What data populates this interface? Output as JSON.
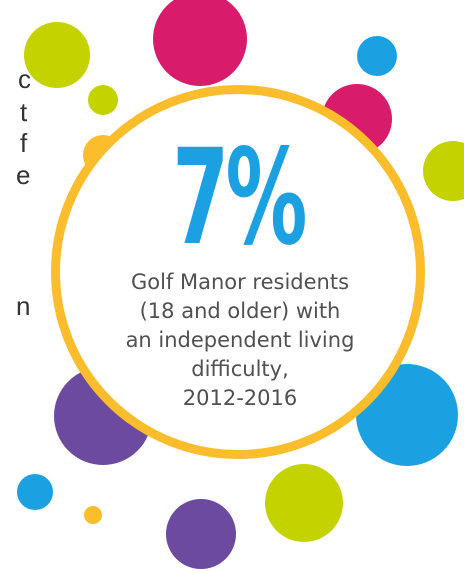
{
  "side_text_fragments": [
    "c",
    "t",
    "f",
    "e",
    "n"
  ],
  "statistic": {
    "value": "7%",
    "caption_lines": [
      "Golf Manor residents",
      "(18 and older) with",
      "an independent living",
      "difficulty,",
      "2012-2016"
    ]
  },
  "colors": {
    "accent_blue": "#1ba1e2",
    "ring_yellow": "#fbbd2c",
    "magenta": "#d81b6b",
    "lime": "#c4d300",
    "purple": "#6b4aa0",
    "text_gray": "#505050"
  }
}
